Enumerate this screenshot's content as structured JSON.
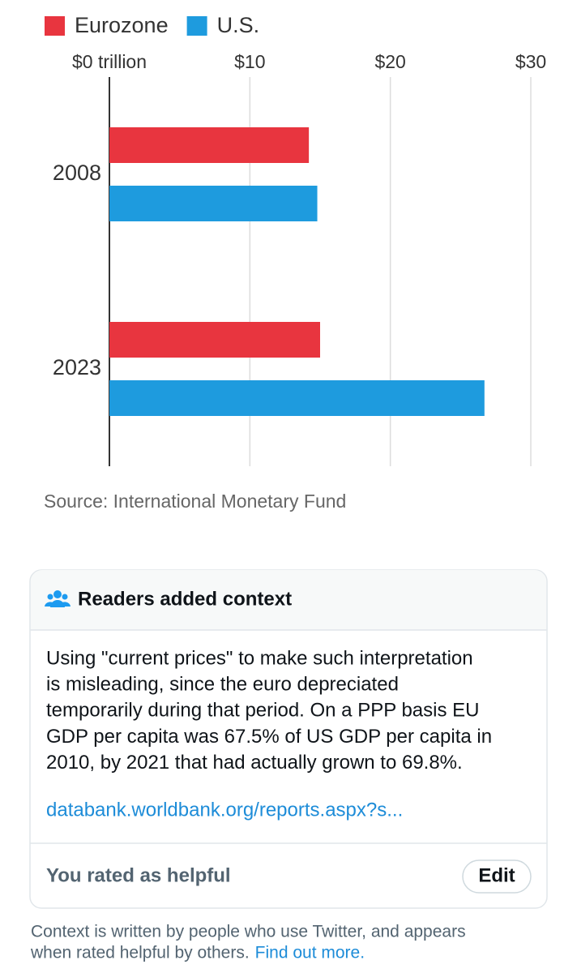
{
  "chart_data": {
    "type": "bar",
    "orientation": "horizontal",
    "categories": [
      "2008",
      "2023"
    ],
    "series": [
      {
        "name": "Eurozone",
        "color": "#e8353f",
        "values": [
          14.2,
          15.0
        ]
      },
      {
        "name": "U.S.",
        "color": "#1e9bde",
        "values": [
          14.8,
          26.7
        ]
      }
    ],
    "xlim": [
      0,
      30
    ],
    "xticks": [
      {
        "value": 0,
        "label": "$0 trillion"
      },
      {
        "value": 10,
        "label": "$10"
      },
      {
        "value": 20,
        "label": "$20"
      },
      {
        "value": 30,
        "label": "$30"
      }
    ],
    "grid": true,
    "legend": "top"
  },
  "source": "Source: International Monetary Fund",
  "context_note": {
    "heading": "Readers added context",
    "body_lines": [
      "Using \"current prices\" to make such interpretation",
      "is misleading, since the euro depreciated",
      "temporarily during that period. On a PPP basis EU",
      "GDP per capita was 67.5% of US GDP per capita in",
      "2010, by 2021 that had actually grown to 69.8%."
    ],
    "link": "databank.worldbank.org/reports.aspx?s...",
    "rating": "You rated as helpful",
    "button": "Edit"
  },
  "footer": {
    "lines": [
      "Context is written by people who use Twitter, and appears",
      "when rated helpful by others."
    ],
    "link": "Find out more."
  }
}
